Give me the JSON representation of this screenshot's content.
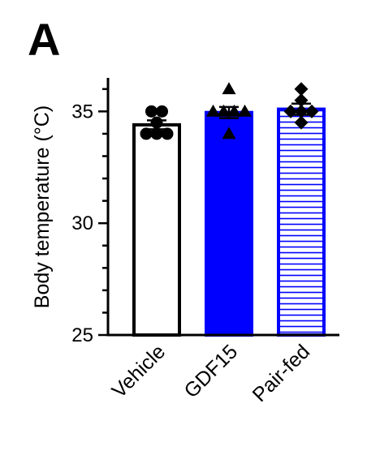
{
  "panel_label": "A",
  "chart_data": {
    "type": "bar",
    "title": "",
    "xlabel": "",
    "ylabel": "Body temperature (°C)",
    "ylim": [
      25,
      36.5
    ],
    "yticks": [
      25,
      30,
      35
    ],
    "ytick_labels": [
      "25",
      "30",
      "35"
    ],
    "categories": [
      "Vehicle",
      "GDF15",
      "Pair-fed"
    ],
    "values": [
      34.4,
      34.95,
      35.1
    ],
    "errors": [
      0.2,
      0.25,
      0.25
    ],
    "fills": [
      "white",
      "solid-blue",
      "blue-horizontal-stripes"
    ],
    "colors": {
      "vehicle": "#000000",
      "gdf15": "#0000ff",
      "pairfed": "#0000ff"
    },
    "points": [
      {
        "marker": "circle",
        "values": [
          35.0,
          35.0,
          34.5,
          34.0,
          34.0,
          34.0
        ]
      },
      {
        "marker": "triangle",
        "values": [
          36.0,
          35.0,
          35.0,
          35.0,
          35.0,
          34.0
        ]
      },
      {
        "marker": "diamond",
        "values": [
          36.0,
          35.5,
          35.0,
          35.0,
          35.0,
          34.5
        ]
      }
    ]
  }
}
